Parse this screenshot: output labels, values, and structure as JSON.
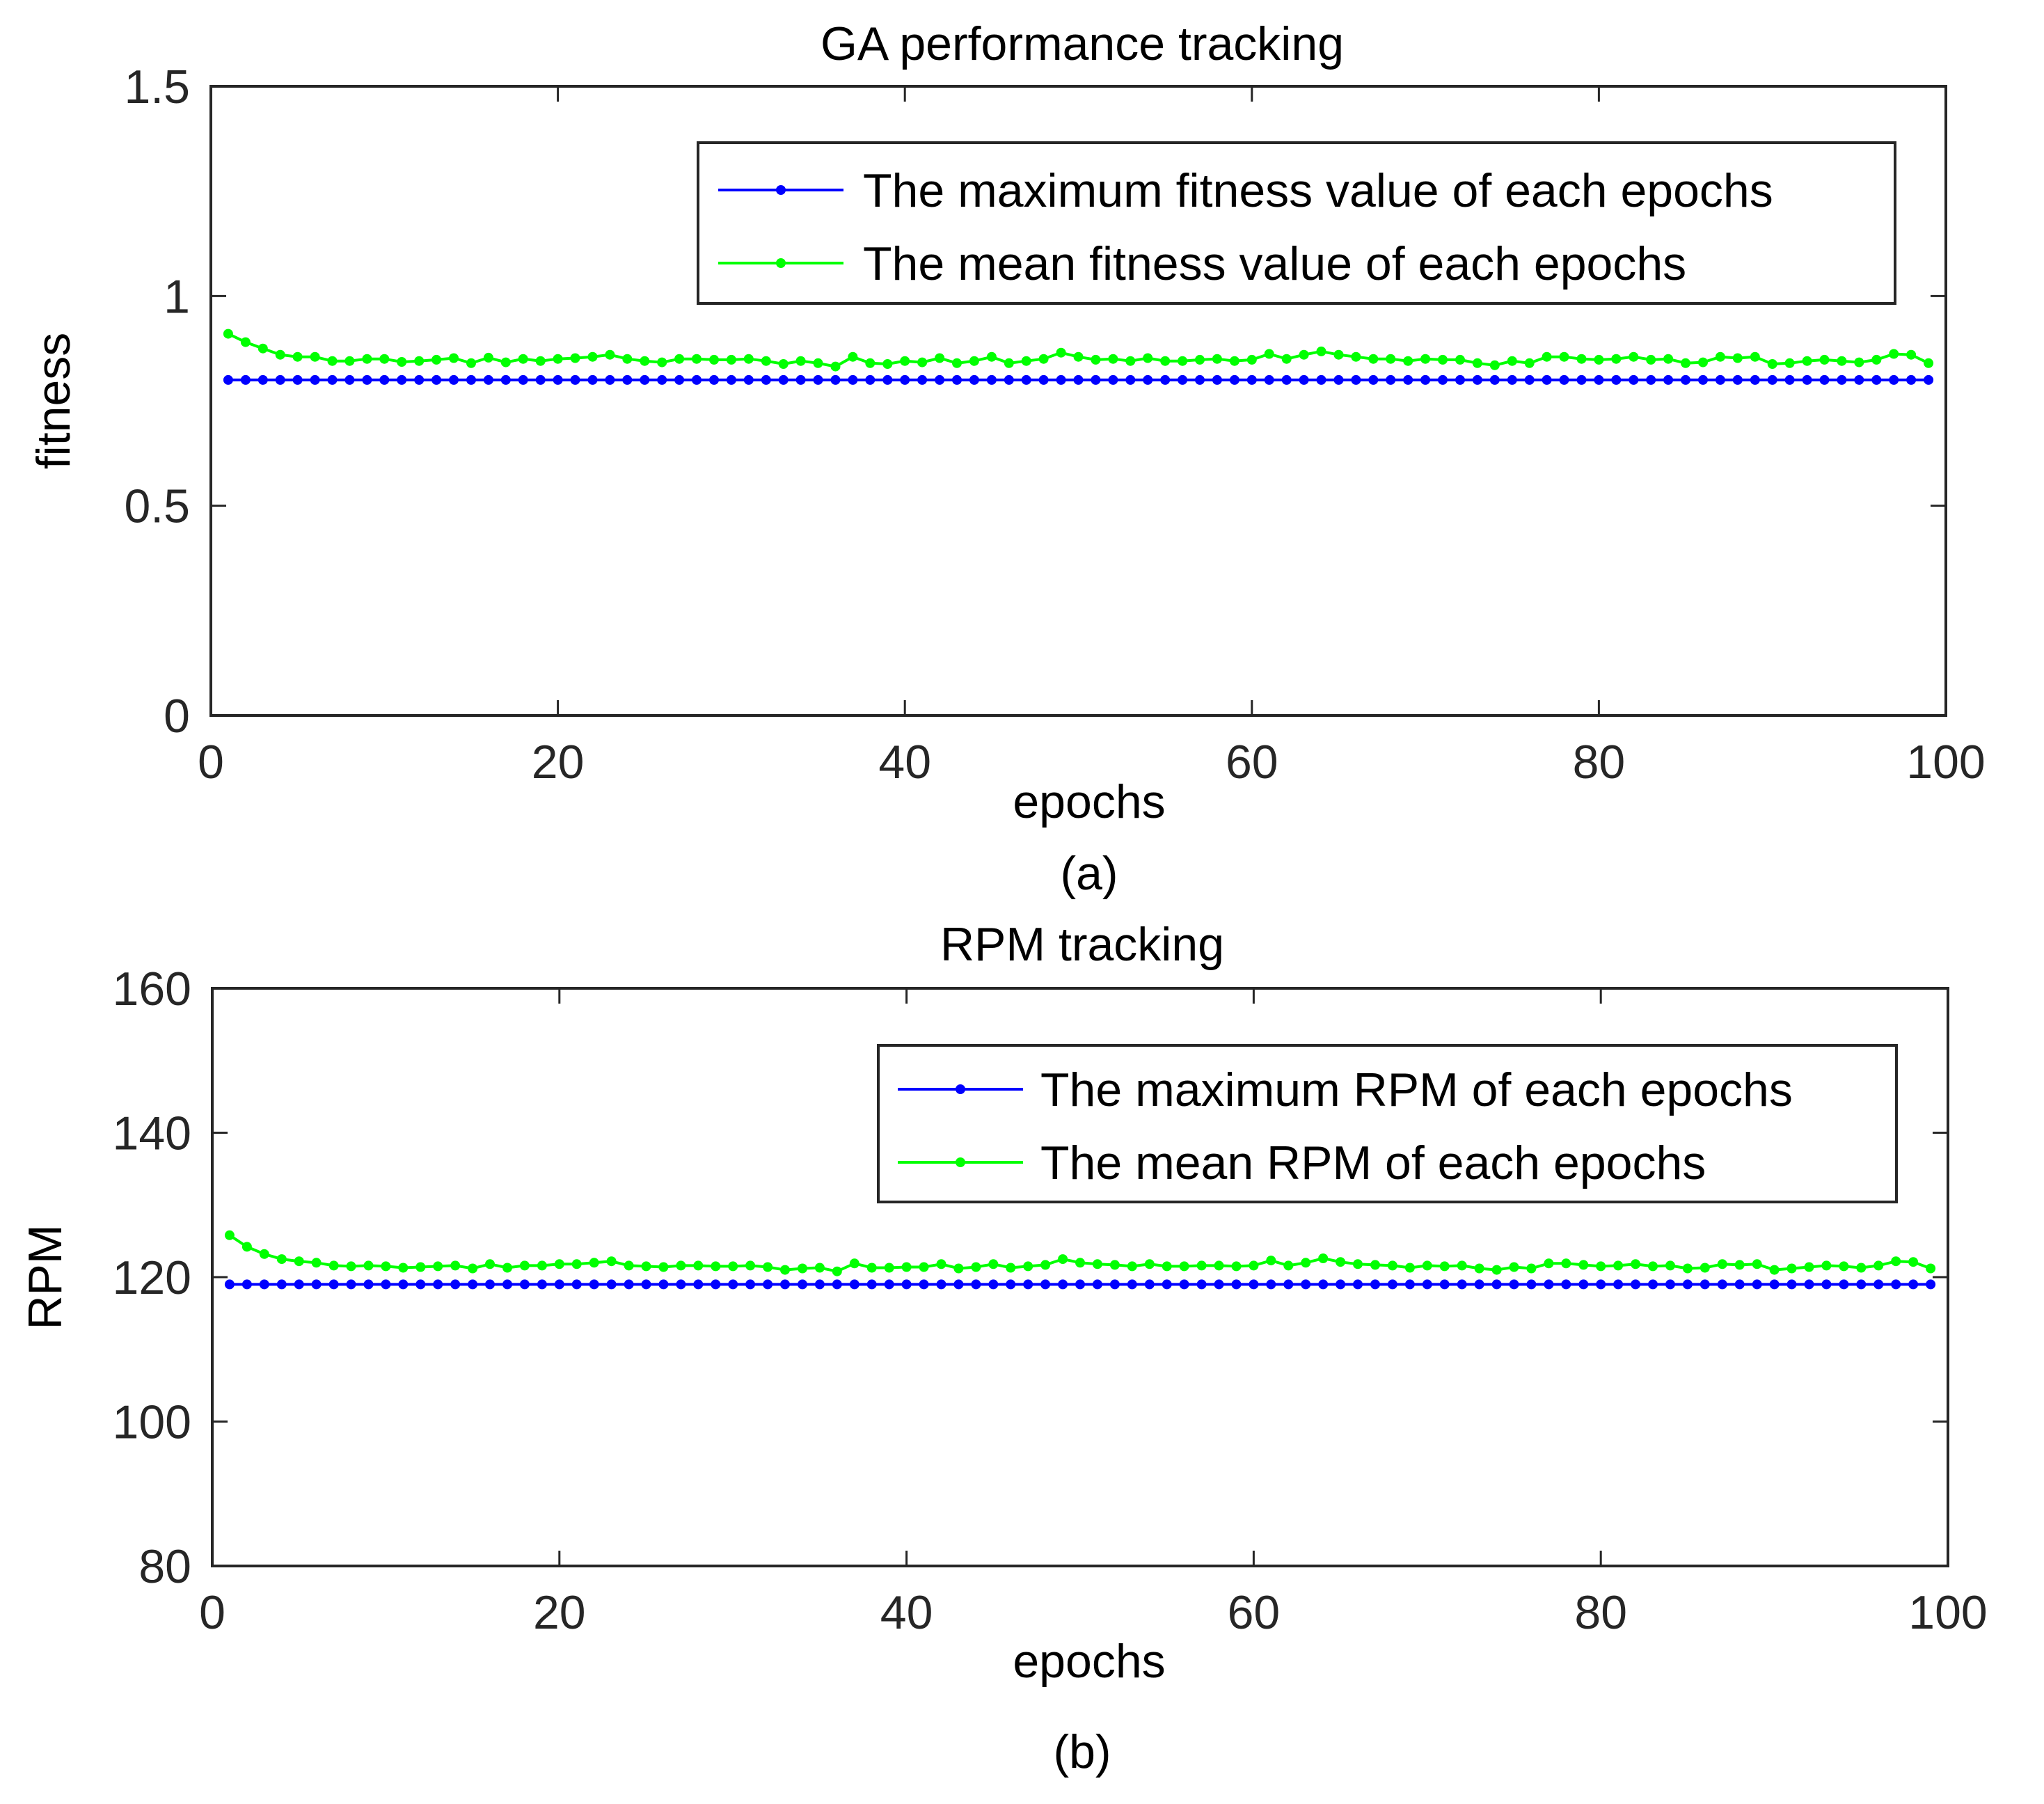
{
  "colors": {
    "max_series": "#0000ff",
    "mean_series": "#00ff00",
    "axis": "#262626"
  },
  "chart_data": [
    {
      "type": "line",
      "title": "GA performance tracking",
      "xlabel": "epochs",
      "ylabel": "fitness",
      "caption": "(a)",
      "xlim": [
        0,
        100
      ],
      "ylim": [
        0,
        1.5
      ],
      "xticks": [
        "0",
        "20",
        "40",
        "60",
        "80",
        "100"
      ],
      "yticks": [
        "0",
        "0.5",
        "1",
        "1.5"
      ],
      "legend_position": "top-right",
      "x_start": 1,
      "series": [
        {
          "name": "The maximum fitness value of each epochs",
          "color": "#0000ff",
          "values": [
            0.8,
            0.8,
            0.8,
            0.8,
            0.8,
            0.8,
            0.8,
            0.8,
            0.8,
            0.8,
            0.8,
            0.8,
            0.8,
            0.8,
            0.8,
            0.8,
            0.8,
            0.8,
            0.8,
            0.8,
            0.8,
            0.8,
            0.8,
            0.8,
            0.8,
            0.8,
            0.8,
            0.8,
            0.8,
            0.8,
            0.8,
            0.8,
            0.8,
            0.8,
            0.8,
            0.8,
            0.8,
            0.8,
            0.8,
            0.8,
            0.8,
            0.8,
            0.8,
            0.8,
            0.8,
            0.8,
            0.8,
            0.8,
            0.8,
            0.8,
            0.8,
            0.8,
            0.8,
            0.8,
            0.8,
            0.8,
            0.8,
            0.8,
            0.8,
            0.8,
            0.8,
            0.8,
            0.8,
            0.8,
            0.8,
            0.8,
            0.8,
            0.8,
            0.8,
            0.8,
            0.8,
            0.8,
            0.8,
            0.8,
            0.8,
            0.8,
            0.8,
            0.8,
            0.8,
            0.8,
            0.8,
            0.8,
            0.8,
            0.8,
            0.8,
            0.8,
            0.8,
            0.8,
            0.8,
            0.8,
            0.8,
            0.8,
            0.8,
            0.8,
            0.8,
            0.8,
            0.8,
            0.8,
            0.8
          ]
        },
        {
          "name": "The mean fitness value of each epochs",
          "color": "#00ff00",
          "values": [
            0.91,
            0.89,
            0.875,
            0.86,
            0.855,
            0.855,
            0.845,
            0.845,
            0.85,
            0.85,
            0.843,
            0.845,
            0.848,
            0.852,
            0.84,
            0.853,
            0.842,
            0.85,
            0.845,
            0.85,
            0.852,
            0.855,
            0.86,
            0.85,
            0.845,
            0.842,
            0.85,
            0.85,
            0.848,
            0.848,
            0.85,
            0.845,
            0.838,
            0.845,
            0.84,
            0.832,
            0.855,
            0.84,
            0.838,
            0.845,
            0.842,
            0.852,
            0.84,
            0.845,
            0.855,
            0.84,
            0.845,
            0.85,
            0.865,
            0.855,
            0.848,
            0.85,
            0.845,
            0.852,
            0.845,
            0.845,
            0.848,
            0.85,
            0.845,
            0.848,
            0.862,
            0.85,
            0.86,
            0.868,
            0.86,
            0.855,
            0.85,
            0.85,
            0.845,
            0.85,
            0.848,
            0.848,
            0.84,
            0.835,
            0.845,
            0.84,
            0.855,
            0.855,
            0.85,
            0.848,
            0.85,
            0.855,
            0.848,
            0.85,
            0.84,
            0.842,
            0.855,
            0.852,
            0.855,
            0.838,
            0.84,
            0.845,
            0.848,
            0.845,
            0.842,
            0.848,
            0.862,
            0.86,
            0.84
          ]
        }
      ]
    },
    {
      "type": "line",
      "title": "RPM tracking",
      "xlabel": "epochs",
      "ylabel": "RPM",
      "caption": "(b)",
      "xlim": [
        0,
        100
      ],
      "ylim": [
        80,
        160
      ],
      "xticks": [
        "0",
        "20",
        "40",
        "60",
        "80",
        "100"
      ],
      "yticks": [
        "80",
        "100",
        "120",
        "140",
        "160"
      ],
      "legend_position": "top-right",
      "x_start": 1,
      "series": [
        {
          "name": "The maximum RPM of each epochs",
          "color": "#0000ff",
          "values": [
            119,
            119,
            119,
            119,
            119,
            119,
            119,
            119,
            119,
            119,
            119,
            119,
            119,
            119,
            119,
            119,
            119,
            119,
            119,
            119,
            119,
            119,
            119,
            119,
            119,
            119,
            119,
            119,
            119,
            119,
            119,
            119,
            119,
            119,
            119,
            119,
            119,
            119,
            119,
            119,
            119,
            119,
            119,
            119,
            119,
            119,
            119,
            119,
            119,
            119,
            119,
            119,
            119,
            119,
            119,
            119,
            119,
            119,
            119,
            119,
            119,
            119,
            119,
            119,
            119,
            119,
            119,
            119,
            119,
            119,
            119,
            119,
            119,
            119,
            119,
            119,
            119,
            119,
            119,
            119,
            119,
            119,
            119,
            119,
            119,
            119,
            119,
            119,
            119,
            119,
            119,
            119,
            119,
            119,
            119,
            119,
            119,
            119,
            119
          ]
        },
        {
          "name": "The mean RPM of each epochs",
          "color": "#00ff00",
          "values": [
            125.8,
            124.2,
            123.2,
            122.5,
            122.2,
            122,
            121.6,
            121.5,
            121.6,
            121.5,
            121.3,
            121.4,
            121.5,
            121.6,
            121.2,
            121.8,
            121.3,
            121.6,
            121.6,
            121.8,
            121.8,
            122,
            122.2,
            121.6,
            121.5,
            121.4,
            121.6,
            121.6,
            121.5,
            121.5,
            121.6,
            121.4,
            121,
            121.2,
            121.3,
            120.8,
            121.9,
            121.3,
            121.3,
            121.4,
            121.4,
            121.8,
            121.2,
            121.4,
            121.8,
            121.3,
            121.5,
            121.7,
            122.5,
            122,
            121.8,
            121.7,
            121.5,
            121.8,
            121.5,
            121.5,
            121.6,
            121.6,
            121.5,
            121.6,
            122.3,
            121.6,
            122,
            122.6,
            122.1,
            121.8,
            121.7,
            121.6,
            121.3,
            121.6,
            121.5,
            121.6,
            121.2,
            121,
            121.4,
            121.2,
            121.9,
            121.9,
            121.7,
            121.5,
            121.6,
            121.8,
            121.5,
            121.6,
            121.2,
            121.3,
            121.8,
            121.7,
            121.8,
            121,
            121.2,
            121.4,
            121.6,
            121.5,
            121.3,
            121.6,
            122.2,
            122.1,
            121.2
          ]
        }
      ]
    }
  ]
}
